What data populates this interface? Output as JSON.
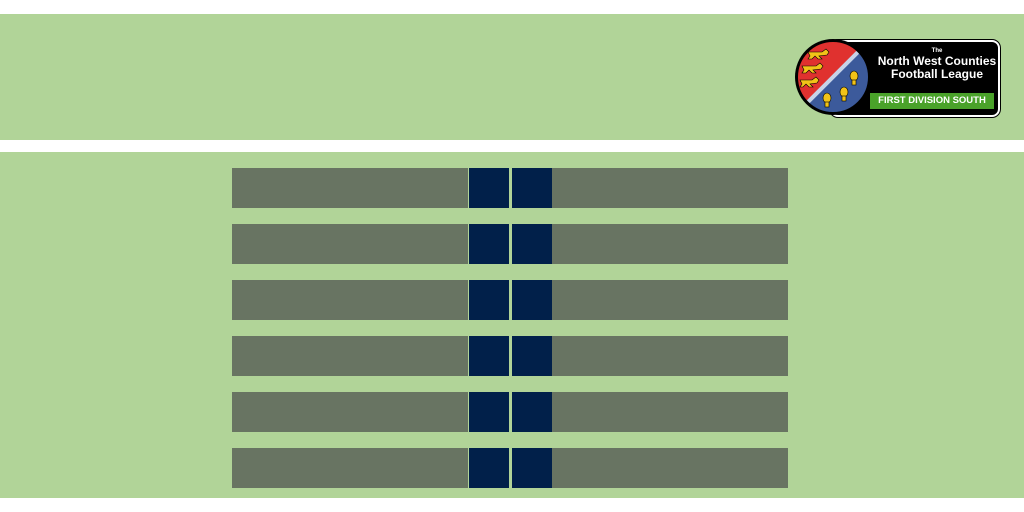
{
  "brand": {
    "header_color": "#b1d498",
    "row_color": "#687462",
    "score_color": "#01204a",
    "division_color": "#4aa22a",
    "crest_red": "#e0312f",
    "crest_blue": "#3c5a9b",
    "crest_gold": "#f2c318"
  },
  "logo": {
    "the": "The",
    "name_line1": "North West Counties",
    "name_line2": "Football League",
    "division": "FIRST DIVISION SOUTH",
    "crest_icon": "lions-and-wheatsheaves-crest-icon"
  },
  "fixtures": [
    {
      "home": "",
      "home_score": "",
      "away_score": "",
      "away": ""
    },
    {
      "home": "",
      "home_score": "",
      "away_score": "",
      "away": ""
    },
    {
      "home": "",
      "home_score": "",
      "away_score": "",
      "away": ""
    },
    {
      "home": "",
      "home_score": "",
      "away_score": "",
      "away": ""
    },
    {
      "home": "",
      "home_score": "",
      "away_score": "",
      "away": ""
    },
    {
      "home": "",
      "home_score": "",
      "away_score": "",
      "away": ""
    }
  ]
}
